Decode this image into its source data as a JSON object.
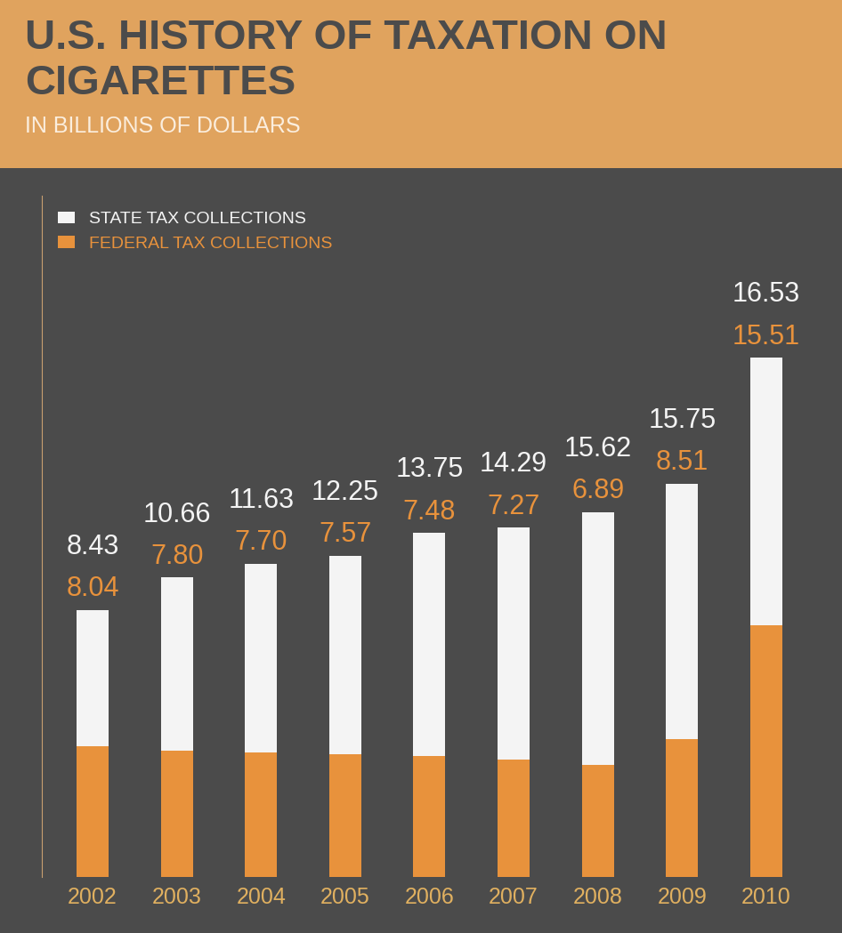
{
  "chart_data": {
    "type": "bar",
    "stacked": true,
    "title": "U.S. HISTORY OF TAXATION ON CIGARETTES",
    "subtitle": "IN BILLIONS OF DOLLARS",
    "categories": [
      "2002",
      "2003",
      "2004",
      "2005",
      "2006",
      "2007",
      "2008",
      "2009",
      "2010"
    ],
    "series": [
      {
        "name": "FEDERAL TAX COLLECTIONS",
        "color": "#e8923c",
        "values": [
          8.04,
          7.8,
          7.7,
          7.57,
          7.48,
          7.27,
          6.89,
          8.51,
          15.51
        ],
        "value_labels": [
          "8.04",
          "7.80",
          "7.70",
          "7.57",
          "7.48",
          "7.27",
          "6.89",
          "8.51",
          "15.51"
        ]
      },
      {
        "name": "STATE TAX COLLECTIONS",
        "color": "#f4f4f4",
        "values": [
          8.43,
          10.66,
          11.63,
          12.25,
          13.75,
          14.29,
          15.62,
          15.75,
          16.53
        ],
        "value_labels": [
          "8.43",
          "10.66",
          "11.63",
          "12.25",
          "13.75",
          "14.29",
          "15.62",
          "15.75",
          "16.53"
        ]
      }
    ],
    "ylim": [
      0,
      42
    ],
    "data_labels": true,
    "tick_labels": "x",
    "legend": "upper left",
    "grid": false
  }
}
